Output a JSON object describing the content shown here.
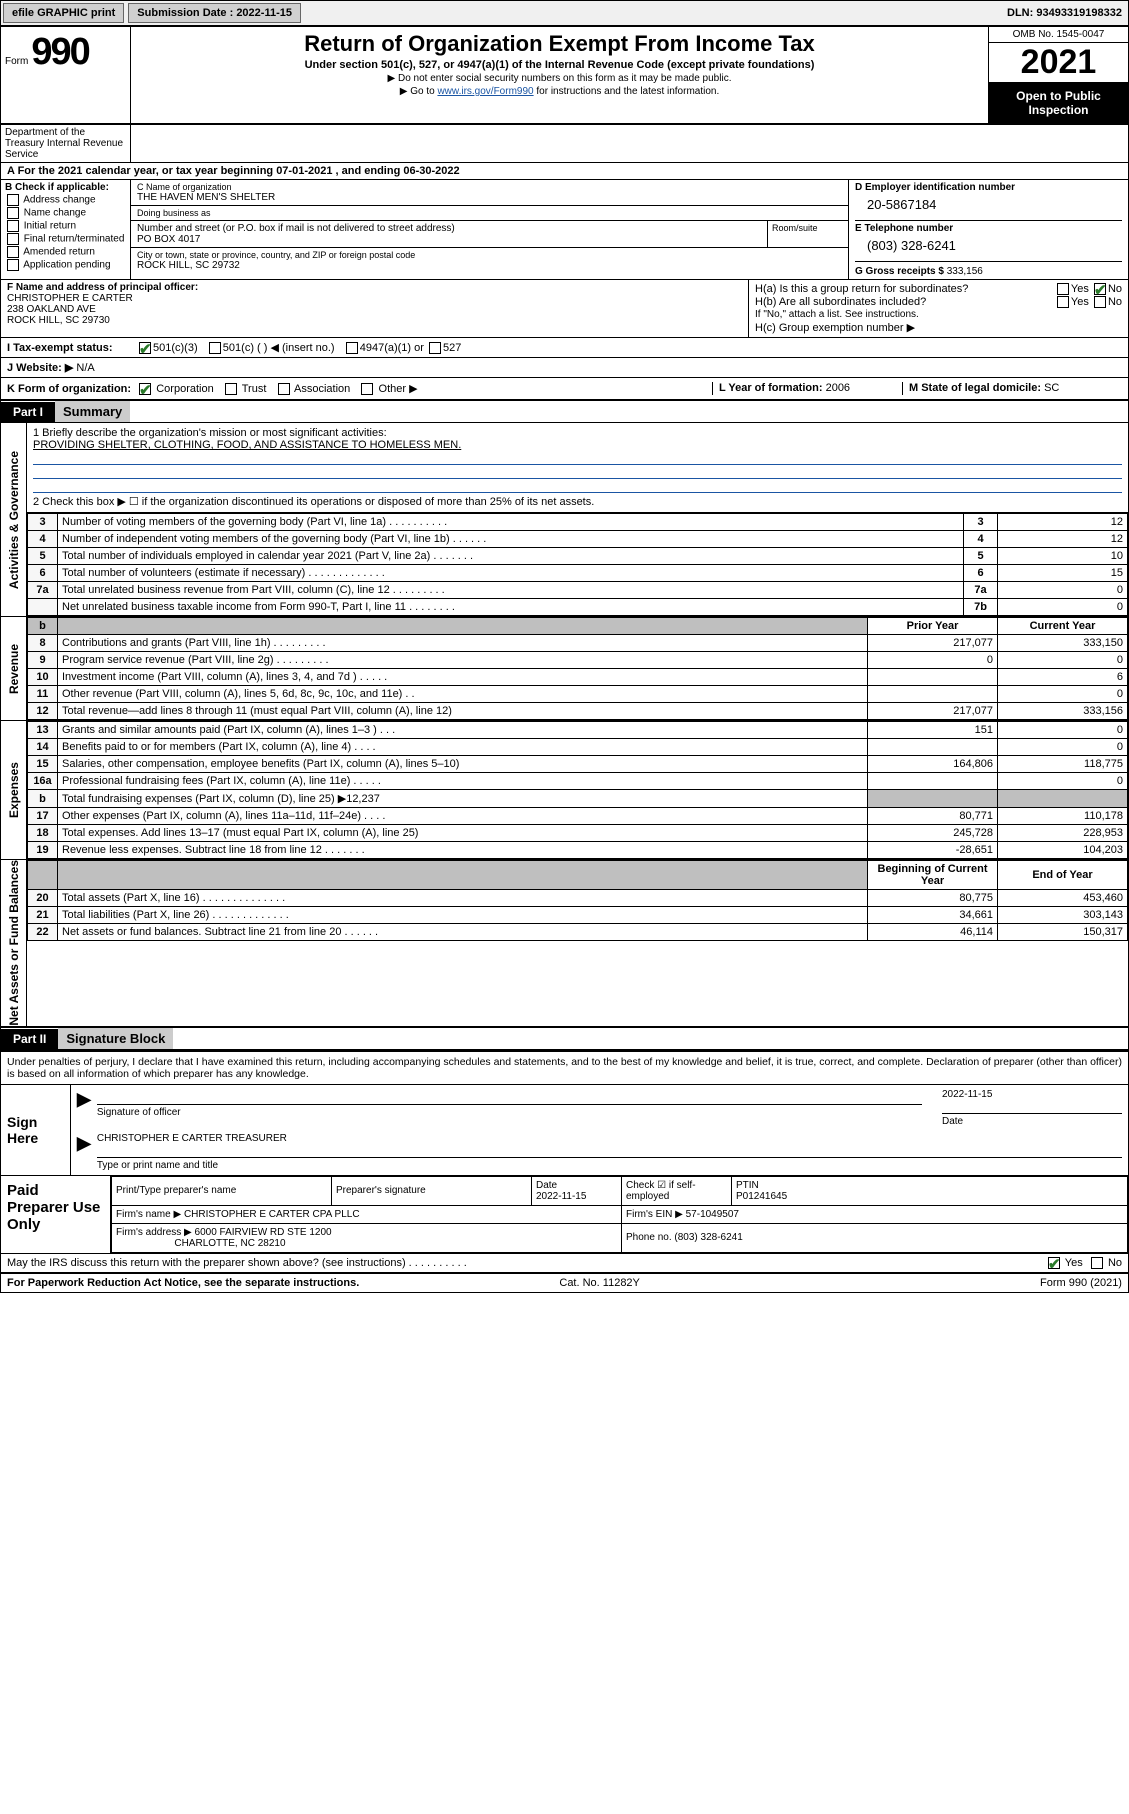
{
  "topbar": {
    "btn_efile": "efile GRAPHIC print",
    "submission_label": "Submission Date : 2022-11-15",
    "dln": "DLN: 93493319198332"
  },
  "header": {
    "form_prefix": "Form",
    "form_number": "990",
    "title": "Return of Organization Exempt From Income Tax",
    "subtitle": "Under section 501(c), 527, or 4947(a)(1) of the Internal Revenue Code (except private foundations)",
    "note1": "▶ Do not enter social security numbers on this form as it may be made public.",
    "note2_pre": "▶ Go to ",
    "note2_link": "www.irs.gov/Form990",
    "note2_post": " for instructions and the latest information.",
    "omb": "OMB No. 1545-0047",
    "year": "2021",
    "open": "Open to Public Inspection",
    "dept": "Department of the Treasury Internal Revenue Service"
  },
  "sectionA": "A For the 2021 calendar year, or tax year beginning 07-01-2021   , and ending 06-30-2022",
  "sectionB": {
    "label": "B Check if applicable:",
    "opts": [
      "Address change",
      "Name change",
      "Initial return",
      "Final return/terminated",
      "Amended return",
      "Application pending"
    ]
  },
  "sectionC": {
    "name_lbl": "C Name of organization",
    "name": "THE HAVEN MEN'S SHELTER",
    "dba_lbl": "Doing business as",
    "dba": "",
    "street_lbl": "Number and street (or P.O. box if mail is not delivered to street address)",
    "room_lbl": "Room/suite",
    "street": "PO BOX 4017",
    "city_lbl": "City or town, state or province, country, and ZIP or foreign postal code",
    "city": "ROCK HILL, SC  29732"
  },
  "sectionD": {
    "lbl": "D Employer identification number",
    "val": "20-5867184"
  },
  "sectionE": {
    "lbl": "E Telephone number",
    "val": "(803) 328-6241"
  },
  "sectionG": {
    "lbl": "G Gross receipts $",
    "val": "333,156"
  },
  "sectionF": {
    "lbl": "F Name and address of principal officer:",
    "l1": "CHRISTOPHER E CARTER",
    "l2": "238 OAKLAND AVE",
    "l3": "ROCK HILL, SC  29730"
  },
  "sectionH": {
    "a": "H(a)  Is this a group return for subordinates?",
    "a_yes": "Yes",
    "a_no": "No",
    "b": "H(b)  Are all subordinates included?",
    "b_yes": "Yes",
    "b_no": "No",
    "b_note": "If \"No,\" attach a list. See instructions.",
    "c": "H(c)  Group exemption number ▶"
  },
  "sectionI": {
    "lbl": "I   Tax-exempt status:",
    "o1": "501(c)(3)",
    "o2": "501(c) (   ) ◀ (insert no.)",
    "o3": "4947(a)(1) or",
    "o4": "527"
  },
  "sectionJ": {
    "lbl": "J   Website: ▶",
    "val": "N/A"
  },
  "sectionK": {
    "lbl": "K Form of organization:",
    "opts": [
      "Corporation",
      "Trust",
      "Association",
      "Other ▶"
    ],
    "L_lbl": "L Year of formation:",
    "L_val": "2006",
    "M_lbl": "M State of legal domicile:",
    "M_val": "SC"
  },
  "part1": {
    "hdr": "Part I",
    "title": "Summary"
  },
  "side_labels": {
    "gov": "Activities & Governance",
    "rev": "Revenue",
    "exp": "Expenses",
    "net": "Net Assets or Fund Balances"
  },
  "mission": {
    "line1_lbl": "1  Briefly describe the organization's mission or most significant activities:",
    "line1_val": "PROVIDING SHELTER, CLOTHING, FOOD, AND ASSISTANCE TO HOMELESS MEN.",
    "line2_lbl": "2  Check this box ▶ ☐ if the organization discontinued its operations or disposed of more than 25% of its net assets."
  },
  "gov_rows": [
    {
      "n": "3",
      "d": "Number of voting members of the governing body (Part VI, line 1a)   .    .    .    .    .    .    .    .    .    .",
      "c": "3",
      "v": "12"
    },
    {
      "n": "4",
      "d": "Number of independent voting members of the governing body (Part VI, line 1b)   .    .    .    .    .    .",
      "c": "4",
      "v": "12"
    },
    {
      "n": "5",
      "d": "Total number of individuals employed in calendar year 2021 (Part V, line 2a)   .    .    .    .    .    .    .",
      "c": "5",
      "v": "10"
    },
    {
      "n": "6",
      "d": "Total number of volunteers (estimate if necessary)   .    .    .    .    .    .    .    .    .    .    .    .    .",
      "c": "6",
      "v": "15"
    },
    {
      "n": "7a",
      "d": "Total unrelated business revenue from Part VIII, column (C), line 12   .    .    .    .    .    .    .    .    .",
      "c": "7a",
      "v": "0"
    },
    {
      "n": "",
      "d": "Net unrelated business taxable income from Form 990-T, Part I, line 11   .    .    .    .    .    .    .    .",
      "c": "7b",
      "v": "0"
    }
  ],
  "col_hdrs": {
    "b_blank": "b",
    "prior": "Prior Year",
    "current": "Current Year"
  },
  "rev_rows": [
    {
      "n": "8",
      "d": "Contributions and grants (Part VIII, line 1h)   .    .    .    .    .    .    .    .    .",
      "p": "217,077",
      "c": "333,150"
    },
    {
      "n": "9",
      "d": "Program service revenue (Part VIII, line 2g)   .    .    .    .    .    .    .    .    .",
      "p": "0",
      "c": "0"
    },
    {
      "n": "10",
      "d": "Investment income (Part VIII, column (A), lines 3, 4, and 7d )   .    .    .    .    .",
      "p": "",
      "c": "6"
    },
    {
      "n": "11",
      "d": "Other revenue (Part VIII, column (A), lines 5, 6d, 8c, 9c, 10c, and 11e)   .    .",
      "p": "",
      "c": "0"
    },
    {
      "n": "12",
      "d": "Total revenue—add lines 8 through 11 (must equal Part VIII, column (A), line 12)",
      "p": "217,077",
      "c": "333,156"
    }
  ],
  "exp_rows": [
    {
      "n": "13",
      "d": "Grants and similar amounts paid (Part IX, column (A), lines 1–3 )   .    .    .",
      "p": "151",
      "c": "0"
    },
    {
      "n": "14",
      "d": "Benefits paid to or for members (Part IX, column (A), line 4)   .    .    .    .",
      "p": "",
      "c": "0"
    },
    {
      "n": "15",
      "d": "Salaries, other compensation, employee benefits (Part IX, column (A), lines 5–10)",
      "p": "164,806",
      "c": "118,775"
    },
    {
      "n": "16a",
      "d": "Professional fundraising fees (Part IX, column (A), line 11e)   .    .    .    .    .",
      "p": "",
      "c": "0"
    },
    {
      "n": "b",
      "d": "Total fundraising expenses (Part IX, column (D), line 25) ▶12,237",
      "p": "GREY",
      "c": "GREY"
    },
    {
      "n": "17",
      "d": "Other expenses (Part IX, column (A), lines 11a–11d, 11f–24e)   .    .    .    .",
      "p": "80,771",
      "c": "110,178"
    },
    {
      "n": "18",
      "d": "Total expenses. Add lines 13–17 (must equal Part IX, column (A), line 25)",
      "p": "245,728",
      "c": "228,953"
    },
    {
      "n": "19",
      "d": "Revenue less expenses. Subtract line 18 from line 12   .    .    .    .    .    .    .",
      "p": "-28,651",
      "c": "104,203"
    }
  ],
  "net_hdrs": {
    "beg": "Beginning of Current Year",
    "end": "End of Year"
  },
  "net_rows": [
    {
      "n": "20",
      "d": "Total assets (Part X, line 16)   .    .    .    .    .    .    .    .    .    .    .    .    .    .",
      "p": "80,775",
      "c": "453,460"
    },
    {
      "n": "21",
      "d": "Total liabilities (Part X, line 26)   .    .    .    .    .    .    .    .    .    .    .    .    .",
      "p": "34,661",
      "c": "303,143"
    },
    {
      "n": "22",
      "d": "Net assets or fund balances. Subtract line 21 from line 20   .    .    .    .    .    .",
      "p": "46,114",
      "c": "150,317"
    }
  ],
  "part2": {
    "hdr": "Part II",
    "title": "Signature Block"
  },
  "sig": {
    "perjury": "Under penalties of perjury, I declare that I have examined this return, including accompanying schedules and statements, and to the best of my knowledge and belief, it is true, correct, and complete. Declaration of preparer (other than officer) is based on all information of which preparer has any knowledge.",
    "sign_here": "Sign Here",
    "sig_officer": "Signature of officer",
    "date_lbl": "Date",
    "date_val": "2022-11-15",
    "name_title": "CHRISTOPHER E CARTER  TREASURER",
    "type_name": "Type or print name and title"
  },
  "paid": {
    "hdr": "Paid Preparer Use Only",
    "h1": "Print/Type preparer's name",
    "h2": "Preparer's signature",
    "h3": "Date",
    "h3v": "2022-11-15",
    "h4": "Check ☑ if self-employed",
    "h5": "PTIN",
    "h5v": "P01241645",
    "firm_name_lbl": "Firm's name    ▶",
    "firm_name": "CHRISTOPHER E CARTER CPA PLLC",
    "ein_lbl": "Firm's EIN ▶",
    "ein": "57-1049507",
    "firm_addr_lbl": "Firm's address ▶",
    "firm_addr1": "6000 FAIRVIEW RD STE 1200",
    "firm_addr2": "CHARLOTTE, NC  28210",
    "phone_lbl": "Phone no.",
    "phone": "(803) 328-6241"
  },
  "footer": {
    "q": "May the IRS discuss this return with the preparer shown above? (see instructions)   .    .    .    .    .    .    .    .    .    .",
    "yes": "Yes",
    "no": "No",
    "pra": "For Paperwork Reduction Act Notice, see the separate instructions.",
    "cat": "Cat. No. 11282Y",
    "form": "Form 990 (2021)"
  }
}
